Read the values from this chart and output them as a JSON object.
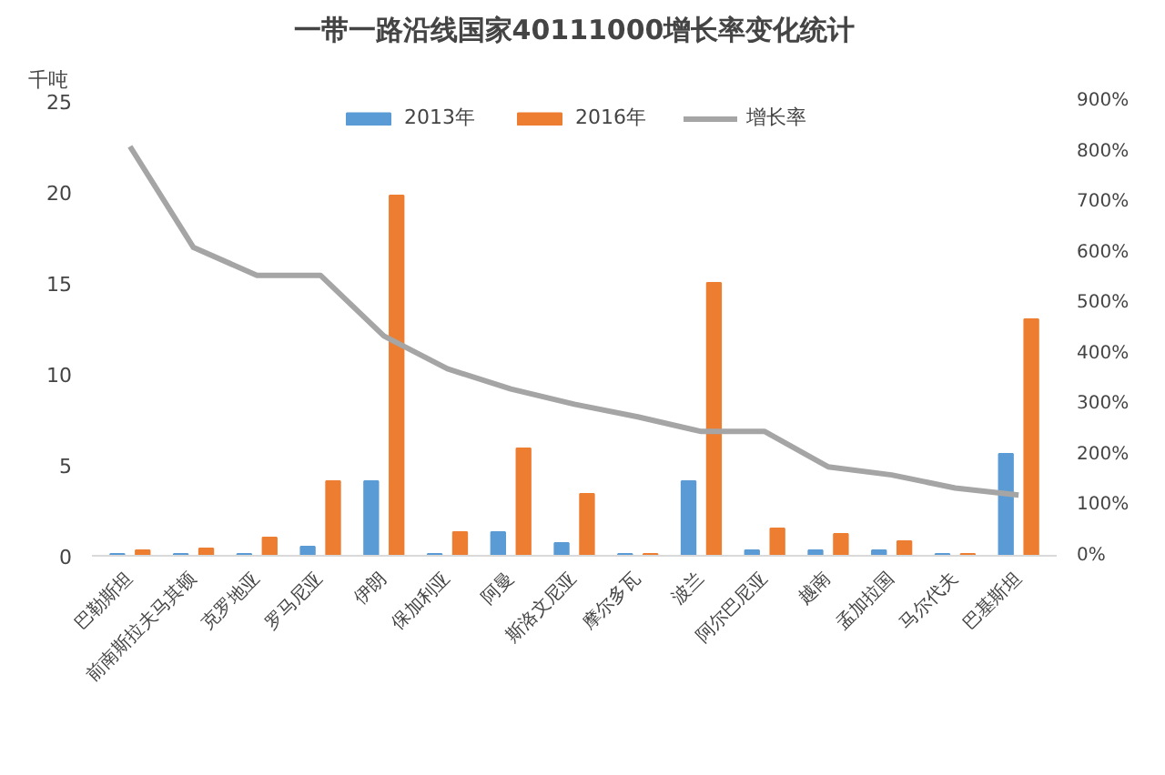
{
  "chart_data": {
    "type": "bar",
    "title": "一带一路沿线国家40111000增长率变化统计",
    "ylabel": "千吨",
    "categories": [
      "巴勒斯坦",
      "前南斯拉夫马其顿",
      "克罗地亚",
      "罗马尼亚",
      "伊朗",
      "保加利亚",
      "阿曼",
      "斯洛文尼亚",
      "摩尔多瓦",
      "波兰",
      "阿尔巴尼亚",
      "越南",
      "孟加拉国",
      "马尔代夫",
      "巴基斯坦"
    ],
    "series": [
      {
        "name": "2013年",
        "color": "#5b9bd5",
        "values": [
          0.1,
          0.1,
          0.1,
          0.5,
          4.1,
          0.1,
          1.3,
          0.7,
          0.1,
          4.1,
          0.3,
          0.3,
          0.3,
          0.1,
          5.6
        ]
      },
      {
        "name": "2016年",
        "color": "#ed7d31",
        "values": [
          0.3,
          0.4,
          1.0,
          4.1,
          19.8,
          1.3,
          5.9,
          3.4,
          0.1,
          15.0,
          1.5,
          1.2,
          0.8,
          0.1,
          13.0
        ]
      },
      {
        "name": "增长率",
        "type": "line",
        "axis": "y2",
        "color": "#a5a5a5",
        "values": [
          810,
          610,
          555,
          555,
          435,
          370,
          330,
          300,
          275,
          246,
          246,
          176,
          160,
          134,
          120
        ]
      }
    ],
    "ylim": [
      0,
      25
    ],
    "yticks": [
      0,
      5,
      10,
      15,
      20,
      25
    ],
    "y2lim": [
      0,
      900
    ],
    "y2ticks": [
      {
        "value": 0,
        "label": "0%"
      },
      {
        "value": 100,
        "label": "100%"
      },
      {
        "value": 200,
        "label": "200%"
      },
      {
        "value": 300,
        "label": "300%"
      },
      {
        "value": 400,
        "label": "400%"
      },
      {
        "value": 500,
        "label": "500%"
      },
      {
        "value": 600,
        "label": "600%"
      },
      {
        "value": 700,
        "label": "700%"
      },
      {
        "value": 800,
        "label": "800%"
      },
      {
        "value": 900,
        "label": "900%"
      }
    ],
    "legend": "top",
    "grid": false
  }
}
